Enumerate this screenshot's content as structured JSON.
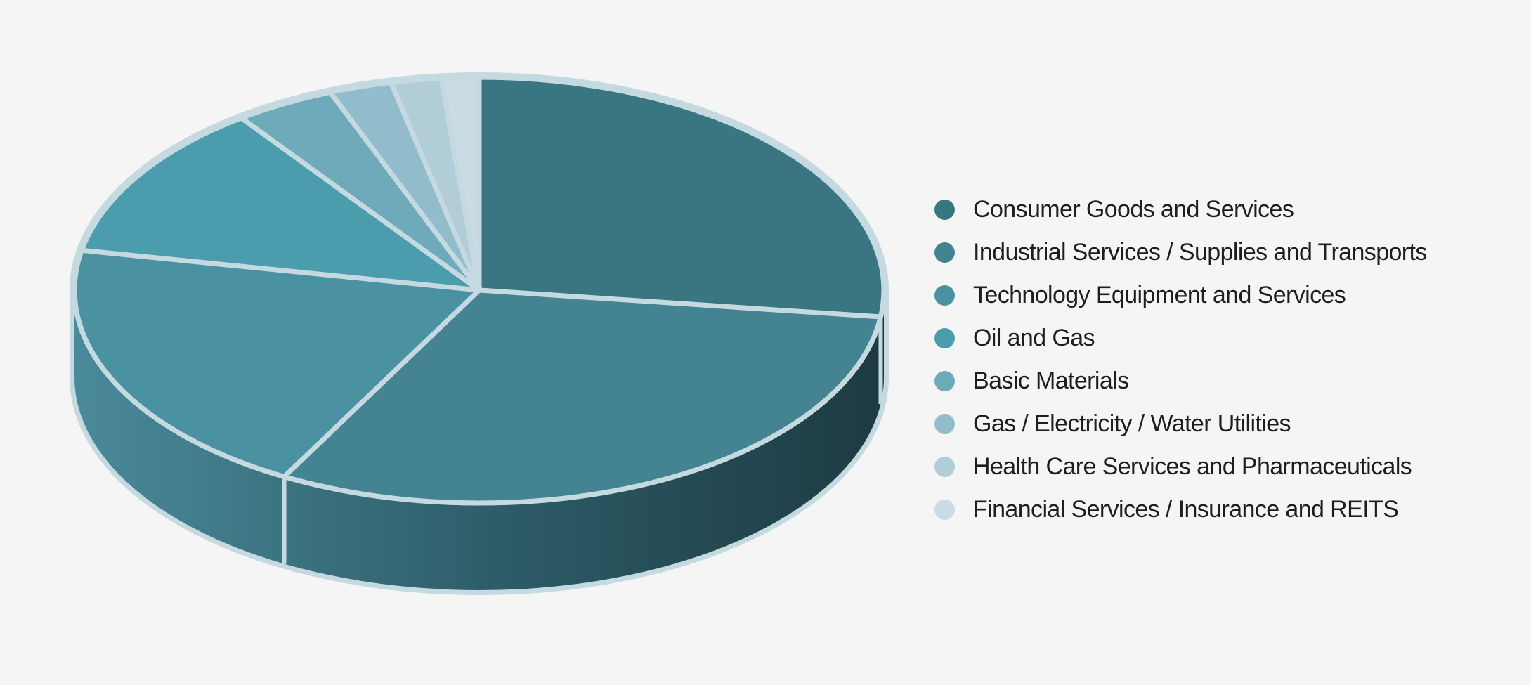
{
  "chart_data": {
    "type": "pie",
    "title": "",
    "style": "3d",
    "legend_position": "right",
    "start": "12 o'clock, clockwise",
    "categories": [
      "Consumer Goods and Services",
      "Industrial Services / Supplies and Transports",
      "Technology Equipment and Services",
      "Oil and Gas",
      "Basic Materials",
      "Gas / Electricity / Water Utilities",
      "Health Care Services and Pharmaceuticals",
      "Financial Services / Insurance and REITS"
    ],
    "values": [
      27,
      31,
      20,
      12,
      4,
      2.5,
      2,
      1.5
    ],
    "colors": [
      "#3a7681",
      "#438392",
      "#4a92a2",
      "#4b9cad",
      "#6faabb",
      "#92bccb",
      "#b0cdd8",
      "#c9dce3"
    ],
    "side_colors": [
      "#1d3a42",
      "#2c5a66",
      "#4a8a99"
    ],
    "separator_color": "#c4d9e0"
  }
}
